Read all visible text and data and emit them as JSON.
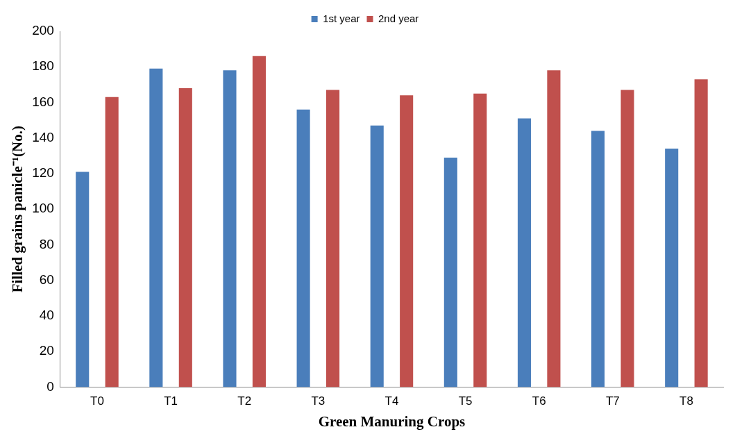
{
  "chart_data": {
    "type": "bar",
    "xlabel": "Green Manuring Crops",
    "ylabel": "Filled grains panicle⁻¹(No.)",
    "categories": [
      "T0",
      "T1",
      "T2",
      "T3",
      "T4",
      "T5",
      "T6",
      "T7",
      "T8"
    ],
    "series": [
      {
        "name": "1st year",
        "color": "#4a7ebb",
        "values": [
          121,
          179,
          178,
          156,
          147,
          129,
          151,
          144,
          134
        ]
      },
      {
        "name": "2nd year",
        "color": "#c0504d",
        "values": [
          163,
          168,
          186,
          167,
          164,
          165,
          178,
          167,
          173
        ]
      }
    ],
    "ylim": [
      0,
      200
    ],
    "yticks": [
      0,
      20,
      40,
      60,
      80,
      100,
      120,
      140,
      160,
      180,
      200
    ],
    "grid": false,
    "legend": "top"
  }
}
